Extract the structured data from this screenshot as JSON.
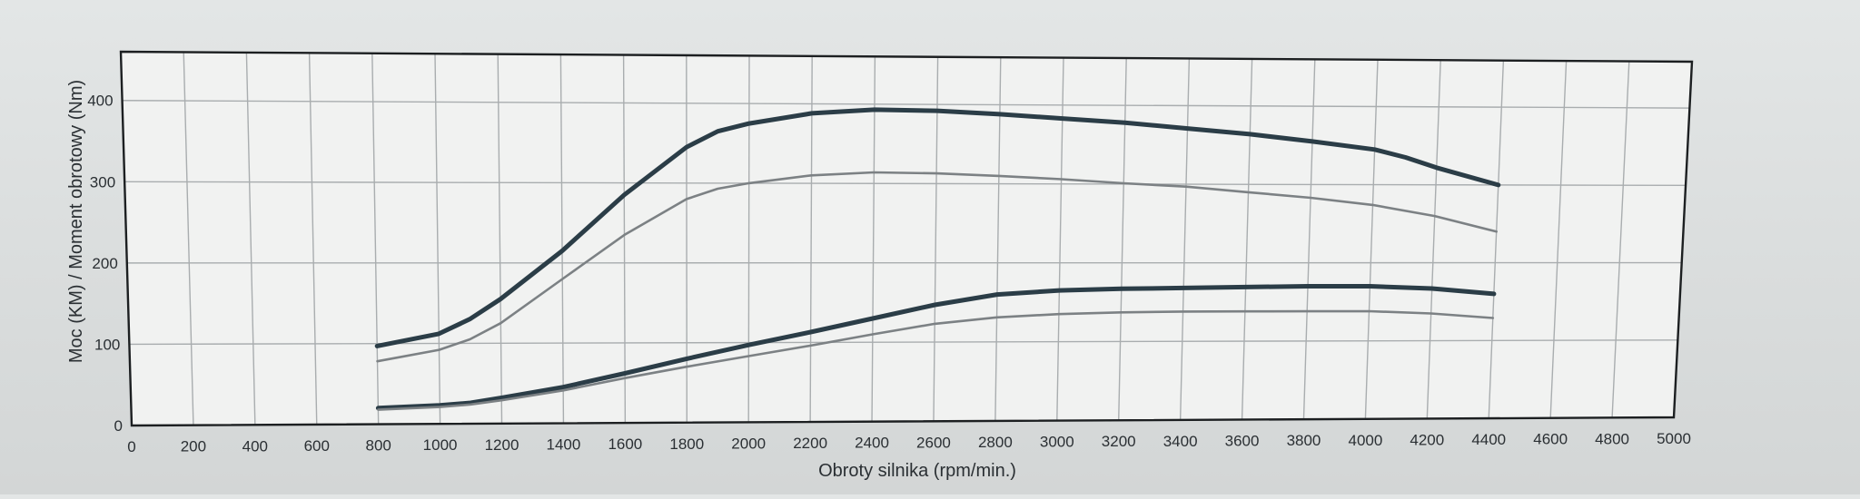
{
  "chart_data": {
    "type": "line",
    "xlabel": "Obroty silnika (rpm/min.)",
    "ylabel": "Moc (KM) / Moment obrotowy (Nm)",
    "xlim": [
      0,
      5000
    ],
    "ylim": [
      0,
      460
    ],
    "x_ticks": [
      "0",
      "200",
      "400",
      "600",
      "800",
      "1000",
      "1200",
      "1400",
      "1600",
      "1800",
      "2000",
      "2200",
      "2400",
      "2600",
      "2800",
      "3000",
      "3200",
      "3400",
      "3600",
      "3800",
      "4000",
      "4200",
      "4400",
      "4600",
      "4800",
      "5000"
    ],
    "y_ticks": [
      "0",
      "100",
      "200",
      "300",
      "400"
    ],
    "grid": true,
    "colors": {
      "bold": "#2b3d47",
      "thin": "#7c8184",
      "grid": "#a9adaf"
    },
    "series": [
      {
        "style": "bold",
        "x": [
          800,
          1000,
          1100,
          1200,
          1400,
          1600,
          1800,
          1900,
          2000,
          2200,
          2400,
          2600,
          2800,
          3000,
          3200,
          3400,
          3600,
          3800,
          4000,
          4100,
          4200,
          4400
        ],
        "y": [
          97,
          112,
          130,
          155,
          215,
          285,
          345,
          365,
          375,
          388,
          393,
          392,
          388,
          383,
          378,
          371,
          364,
          355,
          345,
          335,
          322,
          300
        ]
      },
      {
        "style": "thin",
        "x": [
          800,
          1000,
          1100,
          1200,
          1400,
          1600,
          1800,
          1900,
          2000,
          2200,
          2400,
          2600,
          2800,
          3000,
          3200,
          3400,
          3600,
          3800,
          4000,
          4200,
          4400
        ],
        "y": [
          78,
          92,
          105,
          125,
          180,
          235,
          280,
          293,
          300,
          310,
          314,
          313,
          310,
          306,
          301,
          297,
          290,
          283,
          274,
          260,
          240
        ]
      },
      {
        "style": "bold",
        "x": [
          800,
          1000,
          1100,
          1200,
          1400,
          1600,
          1800,
          2000,
          2200,
          2400,
          2600,
          2800,
          3000,
          3200,
          3400,
          3600,
          3800,
          4000,
          4200,
          4400
        ],
        "y": [
          20,
          23,
          26,
          32,
          45,
          62,
          80,
          97,
          113,
          130,
          147,
          160,
          165,
          167,
          168,
          169,
          170,
          170,
          167,
          160
        ]
      },
      {
        "style": "thin",
        "x": [
          800,
          1000,
          1100,
          1200,
          1400,
          1600,
          1800,
          2000,
          2200,
          2400,
          2600,
          2800,
          3000,
          3200,
          3400,
          3600,
          3800,
          4000,
          4200,
          4400
        ],
        "y": [
          18,
          21,
          24,
          29,
          41,
          56,
          70,
          83,
          96,
          110,
          123,
          131,
          135,
          137,
          138,
          138,
          138,
          138,
          135,
          129
        ]
      }
    ]
  }
}
